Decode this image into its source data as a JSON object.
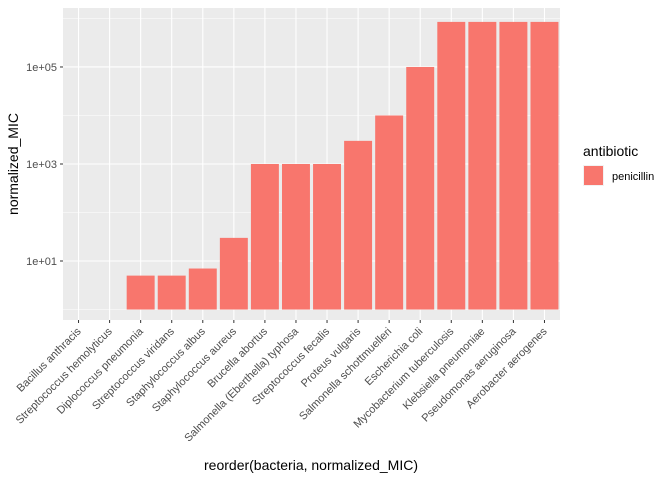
{
  "chart_data": {
    "type": "bar",
    "x_label": "reorder(bacteria, normalized_MIC)",
    "y_label": "normalized_MIC",
    "categories": [
      "Bacillus anthracis",
      "Streptococcus hemolyticus",
      "Diplococcus pneumonia",
      "Streptococcus viridans",
      "Staphylococcus albus",
      "Staphylococcus aureus",
      "Brucella abortus",
      "Salmonella (Eberthella) typhosa",
      "Streptococcus fecalis",
      "Proteus vulgaris",
      "Salmonella schottmuelleri",
      "Escherichia coli",
      "Mycobacterium tuberculosis",
      "Klebsiella pneumoniae",
      "Pseudomonas aeruginosa",
      "Aerobacter aerogenes"
    ],
    "series": [
      {
        "name": "penicillin",
        "color": "#f8766d",
        "values": [
          1,
          1,
          5,
          5,
          7,
          30,
          1000,
          1000,
          1000,
          3000,
          10000,
          100000,
          850000,
          850000,
          850000,
          850000
        ]
      }
    ],
    "legend_title": "antibiotic",
    "legend_position": "right",
    "log_y": true,
    "ylim": [
      0.608,
      1644000
    ],
    "yticks": [
      {
        "value": 10,
        "label": "1e+01"
      },
      {
        "value": 1000,
        "label": "1e+03"
      },
      {
        "value": 100000,
        "label": "1e+05"
      }
    ],
    "grid": true
  }
}
